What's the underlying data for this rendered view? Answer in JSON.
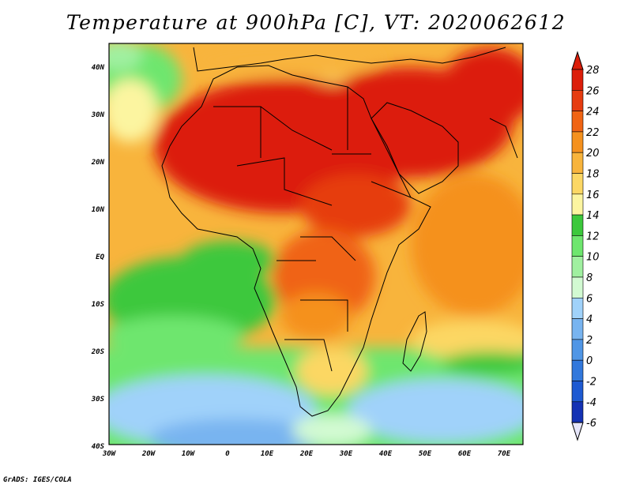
{
  "title": "Temperature at 900hPa [C], VT: 2020062612",
  "credit": "GrADS: IGES/COLA",
  "map": {
    "lon_labels": [
      "30W",
      "20W",
      "10W",
      "0",
      "10E",
      "20E",
      "30E",
      "40E",
      "50E",
      "60E",
      "70E"
    ],
    "lat_labels": [
      "40N",
      "30N",
      "20N",
      "10N",
      "EQ",
      "10S",
      "20S",
      "30S",
      "40S"
    ],
    "lon_range": [
      -30,
      75
    ],
    "lat_range": [
      -40,
      45
    ]
  },
  "legend": {
    "labels": [
      "28",
      "26",
      "24",
      "22",
      "20",
      "18",
      "16",
      "14",
      "12",
      "10",
      "8",
      "6",
      "4",
      "2",
      "0",
      "-2",
      "-4",
      "-6"
    ],
    "colors": [
      "#dc1e0a",
      "#e63c10",
      "#f06414",
      "#f5911e",
      "#f8b43c",
      "#fcd764",
      "#fcf5a0",
      "#3cc83c",
      "#6ee66e",
      "#a0f0a0",
      "#d2fad2",
      "#a0d2fa",
      "#78b4f0",
      "#5096e6",
      "#3278dc",
      "#1e5ad2",
      "#1432b4",
      "#0a1478"
    ]
  },
  "colors": {
    "hot": "#dc1e0a",
    "ocean_warm": "#f8b43c",
    "ocean_cool": "#6ee66e",
    "south_cold": "#a0d2fa"
  }
}
